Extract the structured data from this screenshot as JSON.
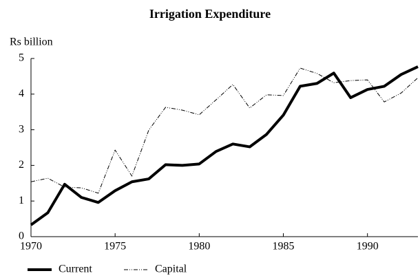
{
  "chart_data": {
    "type": "line",
    "title": "Irrigation Expenditure",
    "y_label": "Rs billion",
    "x": [
      1970,
      1971,
      1972,
      1973,
      1974,
      1975,
      1976,
      1977,
      1978,
      1979,
      1980,
      1981,
      1982,
      1983,
      1984,
      1985,
      1986,
      1987,
      1988,
      1989,
      1990,
      1991,
      1992,
      1993
    ],
    "series": [
      {
        "name": "Current",
        "color": "#000000",
        "style": "solid",
        "values": [
          0.33,
          0.67,
          1.47,
          1.1,
          0.96,
          1.29,
          1.54,
          1.62,
          2.02,
          2.0,
          2.04,
          2.39,
          2.6,
          2.52,
          2.87,
          3.41,
          4.22,
          4.3,
          4.59,
          3.9,
          4.13,
          4.22,
          4.55,
          4.77
        ]
      },
      {
        "name": "Capital",
        "color": "#000000",
        "style": "dashdot",
        "values": [
          1.54,
          1.64,
          1.39,
          1.37,
          1.22,
          2.43,
          1.7,
          2.99,
          3.63,
          3.55,
          3.42,
          3.84,
          4.27,
          3.61,
          3.98,
          3.96,
          4.73,
          4.58,
          4.32,
          4.38,
          4.4,
          3.78,
          4.03,
          4.46
        ]
      }
    ],
    "xlim": [
      1970,
      1993
    ],
    "xticks": [
      1970,
      1975,
      1980,
      1985,
      1990
    ],
    "ylim": [
      0,
      5
    ],
    "yticks": [
      0,
      1,
      2,
      3,
      4,
      5
    ],
    "grid": false,
    "legend": "bottom-left"
  }
}
